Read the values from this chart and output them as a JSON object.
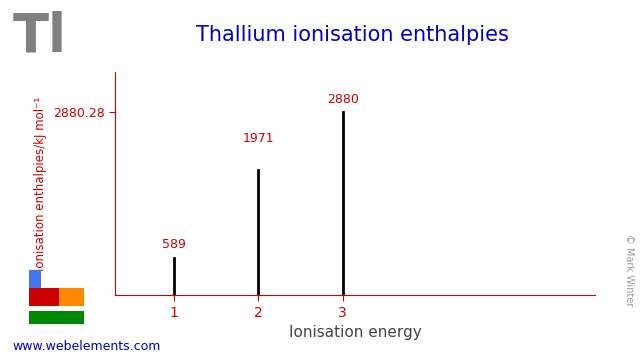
{
  "title": "Thallium ionisation enthalpies",
  "element_symbol": "Tl",
  "ionisation_energies": [
    589,
    1971,
    2880
  ],
  "ionisation_labels": [
    "589",
    "1971",
    "2880"
  ],
  "x_values": [
    1,
    2,
    3
  ],
  "ymax": 2880.28,
  "ymax_label": "2880.28",
  "xlabel": "Ionisation energy",
  "ylabel": "Ionisation enthalpies/kJ mol⁻¹",
  "title_color": "#0000cc",
  "axis_color": "#cc0000",
  "bar_color": "#000000",
  "element_color": "#808080",
  "website": "www.webelements.com",
  "website_color": "#0000cc",
  "copyright": "© Mark Winter",
  "background_color": "#ffffff",
  "periodic_table_colors": {
    "blue": "#4477ee",
    "red": "#cc0000",
    "orange": "#ff8800",
    "green": "#008800"
  }
}
